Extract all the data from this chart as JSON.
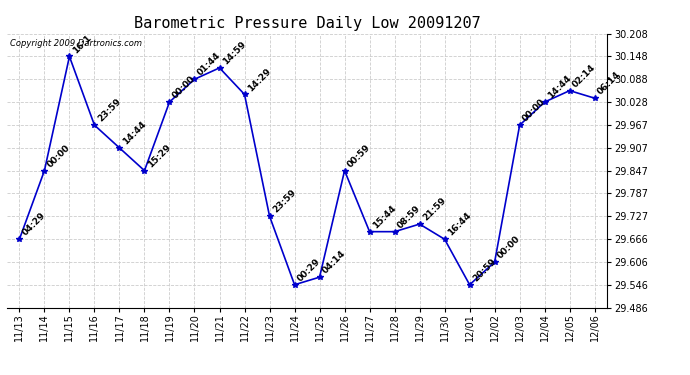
{
  "title": "Barometric Pressure Daily Low 20091207",
  "copyright_text": "Copyright 2009 Dartronics.com",
  "xlabel": "",
  "ylabel": "",
  "background_color": "#ffffff",
  "plot_bg_color": "#ffffff",
  "line_color": "#0000cc",
  "marker_color": "#0000cc",
  "grid_color": "#cccccc",
  "ylim": [
    29.486,
    30.208
  ],
  "yticks": [
    29.486,
    29.546,
    29.606,
    29.666,
    29.727,
    29.787,
    29.847,
    29.907,
    29.967,
    30.028,
    30.088,
    30.148,
    30.208
  ],
  "dates": [
    "11/13",
    "11/14",
    "11/15",
    "11/16",
    "11/17",
    "11/18",
    "11/19",
    "11/20",
    "11/21",
    "11/22",
    "11/23",
    "11/24",
    "11/25",
    "11/26",
    "11/27",
    "11/28",
    "11/29",
    "11/30",
    "12/01",
    "12/02",
    "12/03",
    "12/04",
    "12/05",
    "12/06"
  ],
  "values": [
    29.666,
    29.847,
    30.148,
    29.967,
    29.907,
    29.847,
    30.028,
    30.088,
    30.118,
    30.048,
    29.727,
    29.546,
    29.566,
    29.847,
    29.686,
    29.686,
    29.706,
    29.666,
    29.546,
    29.606,
    29.967,
    30.028,
    30.058,
    30.038
  ],
  "annotations": [
    "04:29",
    "00:00",
    "16:1",
    "23:59",
    "14:44",
    "15:29",
    "00:00",
    "01:44",
    "14:59",
    "14:29",
    "23:59",
    "00:29",
    "04:14",
    "00:59",
    "15:44",
    "08:59",
    "21:59",
    "16:44",
    "20:59",
    "00:00",
    "00:00",
    "14:44",
    "02:14",
    "06:14"
  ],
  "title_fontsize": 11,
  "tick_fontsize": 7,
  "annot_fontsize": 6.5
}
